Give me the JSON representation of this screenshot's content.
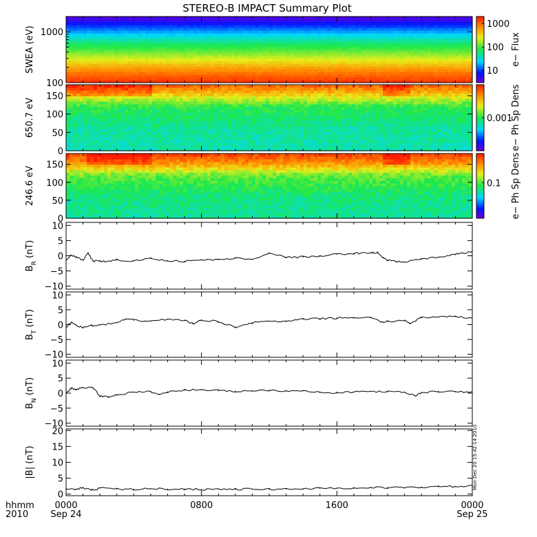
{
  "title": "STEREO-B IMPACT Summary Plot",
  "stamp": "Mon Dec 20 15:42:14 2010",
  "time_axis": {
    "row_label_1": "hhmm",
    "row_label_2": "2010",
    "ticks": [
      {
        "t": 0,
        "label": "0000",
        "date": "Sep 24"
      },
      {
        "t": 8,
        "label": "0800",
        "date": ""
      },
      {
        "t": 16,
        "label": "1600",
        "date": ""
      },
      {
        "t": 24,
        "label": "0000",
        "date": "Sep 25"
      }
    ],
    "range_hours": [
      0,
      24
    ]
  },
  "chart_data": [
    {
      "type": "heatmap",
      "ylabel": "SWEA (eV)",
      "yscale": "log",
      "ylim": [
        100,
        2000
      ],
      "yticks": [
        {
          "v": 100,
          "label": "100"
        },
        {
          "v": 1000,
          "label": "1000"
        }
      ],
      "colorbar": {
        "label": "e− Flux",
        "scale": "log",
        "range": [
          3,
          2000
        ],
        "ticks": [
          {
            "v": 10,
            "label": "10"
          },
          {
            "v": 100,
            "label": "100"
          },
          {
            "v": 1000,
            "label": "1000"
          }
        ]
      },
      "intensity_profile": [
        {
          "y": 100,
          "level": 0.97
        },
        {
          "y": 150,
          "level": 0.88
        },
        {
          "y": 200,
          "level": 0.8
        },
        {
          "y": 300,
          "level": 0.66
        },
        {
          "y": 450,
          "level": 0.54
        },
        {
          "y": 600,
          "level": 0.46
        },
        {
          "y": 800,
          "level": 0.36
        },
        {
          "y": 1000,
          "level": 0.28
        },
        {
          "y": 1300,
          "level": 0.18
        },
        {
          "y": 1600,
          "level": 0.1
        },
        {
          "y": 2000,
          "level": 0.03
        }
      ]
    },
    {
      "type": "heatmap",
      "ylabel": "650.7 eV",
      "yscale": "linear",
      "ylim": [
        0,
        180
      ],
      "yticks": [
        {
          "v": 0,
          "label": "0"
        },
        {
          "v": 50,
          "label": "50"
        },
        {
          "v": 100,
          "label": "100"
        },
        {
          "v": 150,
          "label": "150"
        }
      ],
      "colorbar": {
        "label": "e− Ph Sp Dens",
        "scale": "log",
        "ticks": [
          {
            "frac": 0.5,
            "label": "0.001"
          }
        ]
      },
      "intensity_profile": [
        {
          "y": 0,
          "level": 0.4
        },
        {
          "y": 60,
          "level": 0.42
        },
        {
          "y": 120,
          "level": 0.5
        },
        {
          "y": 150,
          "level": 0.7
        },
        {
          "y": 175,
          "level": 0.88
        }
      ],
      "enhanced_intervals_hours": [
        [
          0.0,
          5.0
        ],
        [
          18.7,
          20.2
        ]
      ]
    },
    {
      "type": "heatmap",
      "ylabel": "246.6 eV",
      "yscale": "linear",
      "ylim": [
        0,
        180
      ],
      "yticks": [
        {
          "v": 0,
          "label": "0"
        },
        {
          "v": 50,
          "label": "50"
        },
        {
          "v": 100,
          "label": "100"
        },
        {
          "v": 150,
          "label": "150"
        }
      ],
      "colorbar": {
        "label": "e− Ph Sp Dens",
        "scale": "log",
        "ticks": [
          {
            "frac": 0.55,
            "label": "0.1"
          }
        ]
      },
      "intensity_profile": [
        {
          "y": 0,
          "level": 0.42
        },
        {
          "y": 60,
          "level": 0.45
        },
        {
          "y": 120,
          "level": 0.56
        },
        {
          "y": 150,
          "level": 0.8
        },
        {
          "y": 175,
          "level": 0.93
        }
      ],
      "enhanced_intervals_hours": [
        [
          1.2,
          5.0
        ],
        [
          18.7,
          20.2
        ]
      ]
    },
    {
      "type": "line",
      "ylabel_main": "B",
      "ylabel_sub": "R",
      "ylabel_unit": " (nT)",
      "ylim": [
        -11,
        11
      ],
      "yticks": [
        {
          "v": -10,
          "label": "−10"
        },
        {
          "v": -5,
          "label": "−5"
        },
        {
          "v": 0,
          "label": "0"
        },
        {
          "v": 5,
          "label": "5"
        },
        {
          "v": 10,
          "label": "10"
        }
      ],
      "x": [
        0,
        0.3,
        0.6,
        1.0,
        1.3,
        1.6,
        2.0,
        2.3,
        3,
        4,
        5,
        6,
        7,
        8,
        9,
        10,
        11,
        12,
        13,
        14,
        15,
        16,
        17,
        18,
        18.4,
        18.7,
        19,
        19.5,
        20,
        21,
        22,
        23,
        23.5,
        24
      ],
      "y": [
        -1.5,
        0.2,
        -0.5,
        -1.5,
        0.8,
        -1.8,
        -1.6,
        -2.0,
        -1.4,
        -1.7,
        -0.9,
        -1.6,
        -1.8,
        -1.4,
        -1.3,
        -0.8,
        -1.2,
        1.0,
        -0.5,
        -0.4,
        -0.2,
        0.5,
        0.8,
        1.0,
        1.0,
        -0.5,
        -1.5,
        -1.9,
        -2.0,
        -1.2,
        -0.5,
        0.5,
        0.8,
        1.5
      ]
    },
    {
      "type": "line",
      "ylabel_main": "B",
      "ylabel_sub": "T",
      "ylabel_unit": " (nT)",
      "ylim": [
        -11,
        11
      ],
      "yticks": [
        {
          "v": -10,
          "label": "−10"
        },
        {
          "v": -5,
          "label": "−5"
        },
        {
          "v": 0,
          "label": "0"
        },
        {
          "v": 5,
          "label": "5"
        },
        {
          "v": 10,
          "label": "10"
        }
      ],
      "x": [
        0,
        0.3,
        0.6,
        1.0,
        1.5,
        2,
        3,
        3.5,
        4,
        5,
        6,
        7,
        7.5,
        8,
        9,
        10,
        11,
        12,
        13,
        14,
        15,
        16,
        17,
        18,
        18.7,
        19,
        20,
        20.3,
        21,
        22,
        23,
        24
      ],
      "y": [
        -1.0,
        0.8,
        -0.2,
        -1.0,
        -0.3,
        -0.2,
        0.6,
        1.8,
        1.5,
        1.2,
        1.8,
        1.5,
        0.2,
        1.6,
        1.0,
        -0.8,
        0.6,
        1.2,
        1.0,
        1.8,
        2.0,
        2.2,
        2.4,
        2.3,
        0.8,
        1.0,
        1.5,
        0.5,
        2.3,
        2.5,
        2.7,
        2.2
      ]
    },
    {
      "type": "line",
      "ylabel_main": "B",
      "ylabel_sub": "N",
      "ylabel_unit": " (nT)",
      "ylim": [
        -11,
        11
      ],
      "yticks": [
        {
          "v": -10,
          "label": "−10"
        },
        {
          "v": -5,
          "label": "−5"
        },
        {
          "v": 0,
          "label": "0"
        },
        {
          "v": 5,
          "label": "5"
        },
        {
          "v": 10,
          "label": "10"
        }
      ],
      "x": [
        0,
        0.3,
        0.6,
        1.0,
        1.6,
        2,
        2.5,
        3,
        4,
        5,
        5.5,
        6,
        7,
        8,
        9,
        10,
        11,
        12,
        13,
        14,
        15,
        16,
        17,
        18,
        19,
        20,
        20.6,
        21,
        22,
        23,
        24
      ],
      "y": [
        0,
        1.6,
        1.2,
        1.8,
        1.8,
        -1.0,
        -1.2,
        -0.6,
        0.3,
        0.5,
        -0.5,
        0.4,
        1.0,
        1.2,
        0.8,
        0.6,
        0.8,
        1.0,
        0.7,
        0.9,
        0.2,
        0.0,
        0.4,
        0.6,
        0.4,
        0.3,
        -0.9,
        0.1,
        0.6,
        0.4,
        0.3
      ]
    },
    {
      "type": "line",
      "ylabel_main": "|B|",
      "ylabel_sub": "",
      "ylabel_unit": " (nT)",
      "ylim": [
        -0.5,
        20.5
      ],
      "yticks": [
        {
          "v": 0,
          "label": "0"
        },
        {
          "v": 5,
          "label": "5"
        },
        {
          "v": 10,
          "label": "10"
        },
        {
          "v": 15,
          "label": "15"
        },
        {
          "v": 20,
          "label": "20"
        }
      ],
      "x": [
        0,
        0.5,
        1,
        1.5,
        2,
        3,
        4,
        5,
        6,
        7,
        8,
        9,
        10,
        11,
        12,
        13,
        14,
        15,
        16,
        17,
        18,
        19,
        20,
        21,
        22,
        23,
        24
      ],
      "y": [
        1.8,
        1.4,
        2.0,
        1.2,
        1.9,
        1.6,
        1.5,
        1.7,
        1.6,
        1.6,
        1.5,
        1.6,
        1.5,
        1.6,
        1.5,
        1.6,
        1.7,
        1.8,
        1.9,
        1.8,
        2.0,
        2.1,
        2.0,
        2.2,
        2.3,
        2.4,
        2.5
      ]
    }
  ]
}
